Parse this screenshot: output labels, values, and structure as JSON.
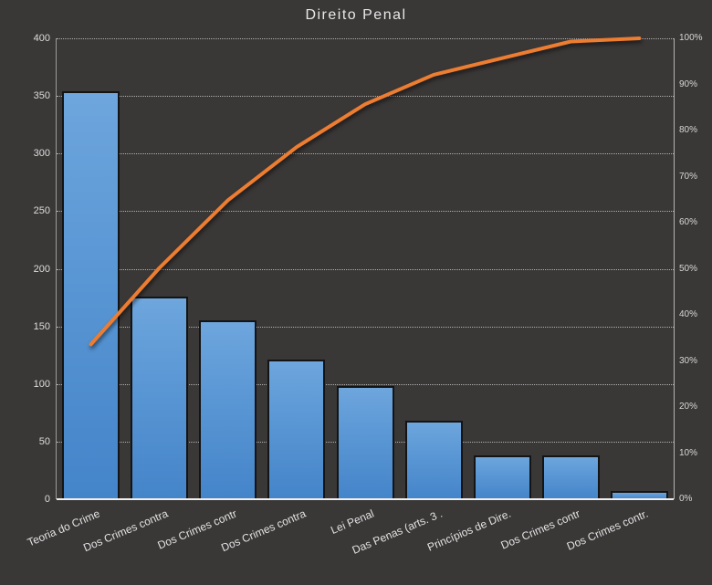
{
  "title": "Direito Penal",
  "colors": {
    "background": "#3A3737",
    "bar_gradient_top": "#6EA6DD",
    "bar_gradient_bottom": "#4484C9",
    "bar_border": "#141414",
    "line": "#ED7D31",
    "gridline": "#C6C4C4",
    "axis_text": "#DEDCDC",
    "title_text": "#EAE8E8",
    "x_axis_line": "#F0EFEF"
  },
  "chart_data": {
    "type": "bar",
    "subtype": "pareto (column + cumulative % line)",
    "title": "Direito Penal",
    "categories": [
      "Teoria do Crime",
      "Dos Crimes contra",
      "Dos Crimes contr",
      "Dos Crimes contra",
      "Lei Penal",
      "Das Penas (arts. 3 .",
      "Princípios de Dire.",
      "Dos Crimes contr",
      "Dos Crimes contr."
    ],
    "series": [
      {
        "name": "frequency",
        "type": "bar",
        "axis": "left",
        "values": [
          354,
          176,
          155,
          121,
          98,
          68,
          38,
          38,
          7
        ]
      },
      {
        "name": "cumulative-percent",
        "type": "line",
        "axis": "right",
        "values": [
          33.6,
          50.2,
          64.9,
          76.4,
          85.7,
          92.1,
          95.7,
          99.3,
          100
        ]
      }
    ],
    "left_axis": {
      "min": 0,
      "max": 400,
      "step": 50,
      "ticks": [
        "0",
        "50",
        "100",
        "150",
        "200",
        "250",
        "300",
        "350",
        "400"
      ]
    },
    "right_axis": {
      "min": 0,
      "max": 100,
      "step": 10,
      "ticks": [
        "0%",
        "10%",
        "20%",
        "30%",
        "40%",
        "50%",
        "60%",
        "70%",
        "80%",
        "90%",
        "100%"
      ]
    },
    "grid": "horizontal dotted lines at every 50 units of left axis",
    "legend": "none",
    "xlabel": "",
    "ylabel": ""
  }
}
